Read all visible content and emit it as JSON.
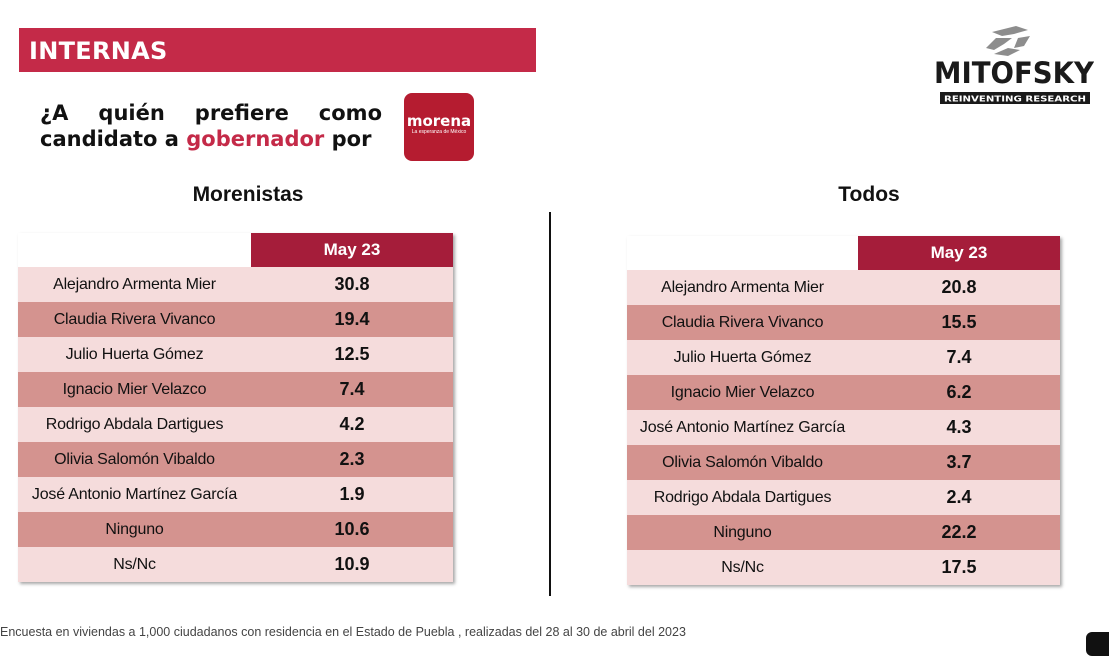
{
  "header": {
    "banner_label": "INTERNAS",
    "question_part1": "¿A quién prefiere como candidato a ",
    "question_highlight": "gobernador",
    "question_part2": " por",
    "party_logo_text": "morena",
    "party_logo_tagline": "La esperanza de México",
    "brand_name": "MITOFSKY",
    "brand_tagline": "REINVENTING RESEARCH",
    "accent_color": "#c42a48"
  },
  "morenistas": {
    "title": "Morenistas",
    "column_header": "May 23",
    "rows": [
      {
        "name": "Alejandro Armenta Mier",
        "value": "30.8"
      },
      {
        "name": "Claudia Rivera Vivanco",
        "value": "19.4"
      },
      {
        "name": "Julio Huerta Gómez",
        "value": "12.5"
      },
      {
        "name": "Ignacio Mier Velazco",
        "value": "7.4"
      },
      {
        "name": "Rodrigo Abdala Dartigues",
        "value": "4.2"
      },
      {
        "name": "Olivia Salomón Vibaldo",
        "value": "2.3"
      },
      {
        "name": "José Antonio Martínez García",
        "value": "1.9"
      },
      {
        "name": "Ninguno",
        "value": "10.6"
      },
      {
        "name": "Ns/Nc",
        "value": "10.9"
      }
    ]
  },
  "todos": {
    "title": "Todos",
    "column_header": "May 23",
    "rows": [
      {
        "name": "Alejandro Armenta Mier",
        "value": "20.8"
      },
      {
        "name": "Claudia Rivera Vivanco",
        "value": "15.5"
      },
      {
        "name": "Julio Huerta Gómez",
        "value": "7.4"
      },
      {
        "name": "Ignacio Mier Velazco",
        "value": "6.2"
      },
      {
        "name": "José Antonio Martínez García",
        "value": "4.3"
      },
      {
        "name": "Olivia Salomón Vibaldo",
        "value": "3.7"
      },
      {
        "name": "Rodrigo Abdala Dartigues",
        "value": "2.4"
      },
      {
        "name": "Ninguno",
        "value": "22.2"
      },
      {
        "name": "Ns/Nc",
        "value": "17.5"
      }
    ]
  },
  "footer": {
    "note": "Encuesta en viviendas a 1,000 ciudadanos con residencia en el Estado de Puebla , realizadas del 28 al 30 de abril del 2023"
  }
}
